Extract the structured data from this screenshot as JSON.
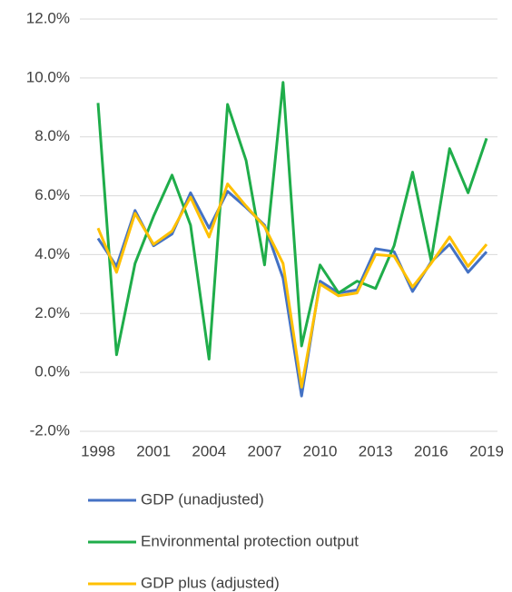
{
  "chart_data": {
    "type": "line",
    "x": [
      1998,
      1999,
      2000,
      2001,
      2002,
      2003,
      2004,
      2005,
      2006,
      2007,
      2008,
      2009,
      2010,
      2011,
      2012,
      2013,
      2014,
      2015,
      2016,
      2017,
      2018,
      2019
    ],
    "xlim": [
      1998,
      2019
    ],
    "xticks": [
      1998,
      2001,
      2004,
      2007,
      2010,
      2013,
      2016,
      2019
    ],
    "ylim": [
      -2,
      12
    ],
    "yticks": [
      {
        "value": -2,
        "label": "-2.0%"
      },
      {
        "value": 0,
        "label": "0.0%"
      },
      {
        "value": 2,
        "label": "2.0%"
      },
      {
        "value": 4,
        "label": "4.0%"
      },
      {
        "value": 6,
        "label": "6.0%"
      },
      {
        "value": 8,
        "label": "8.0%"
      },
      {
        "value": 10,
        "label": "10.0%"
      },
      {
        "value": 12,
        "label": "12.0%"
      }
    ],
    "grid": true,
    "legend": "bottom",
    "series": [
      {
        "name": "GDP (unadjusted)",
        "color": "#4472c4",
        "values": [
          4.55,
          3.6,
          5.5,
          4.3,
          4.7,
          6.1,
          4.9,
          6.15,
          5.6,
          5.0,
          3.2,
          -0.8,
          3.1,
          2.7,
          2.8,
          4.2,
          4.1,
          2.75,
          3.75,
          4.35,
          3.4,
          4.1
        ]
      },
      {
        "name": "Environmental protection output",
        "color": "#1fad4a",
        "values": [
          9.15,
          0.6,
          3.7,
          5.3,
          6.7,
          5.0,
          0.45,
          9.1,
          7.2,
          3.65,
          9.85,
          0.9,
          3.65,
          2.7,
          3.1,
          2.85,
          4.3,
          6.8,
          3.8,
          7.6,
          6.1,
          7.95
        ]
      },
      {
        "name": "GDP plus (adjusted)",
        "color": "#ffc000",
        "values": [
          4.9,
          3.4,
          5.4,
          4.35,
          4.8,
          5.95,
          4.6,
          6.4,
          5.65,
          4.95,
          3.7,
          -0.5,
          3.0,
          2.6,
          2.7,
          4.0,
          3.95,
          2.9,
          3.7,
          4.6,
          3.6,
          4.35
        ]
      }
    ]
  }
}
